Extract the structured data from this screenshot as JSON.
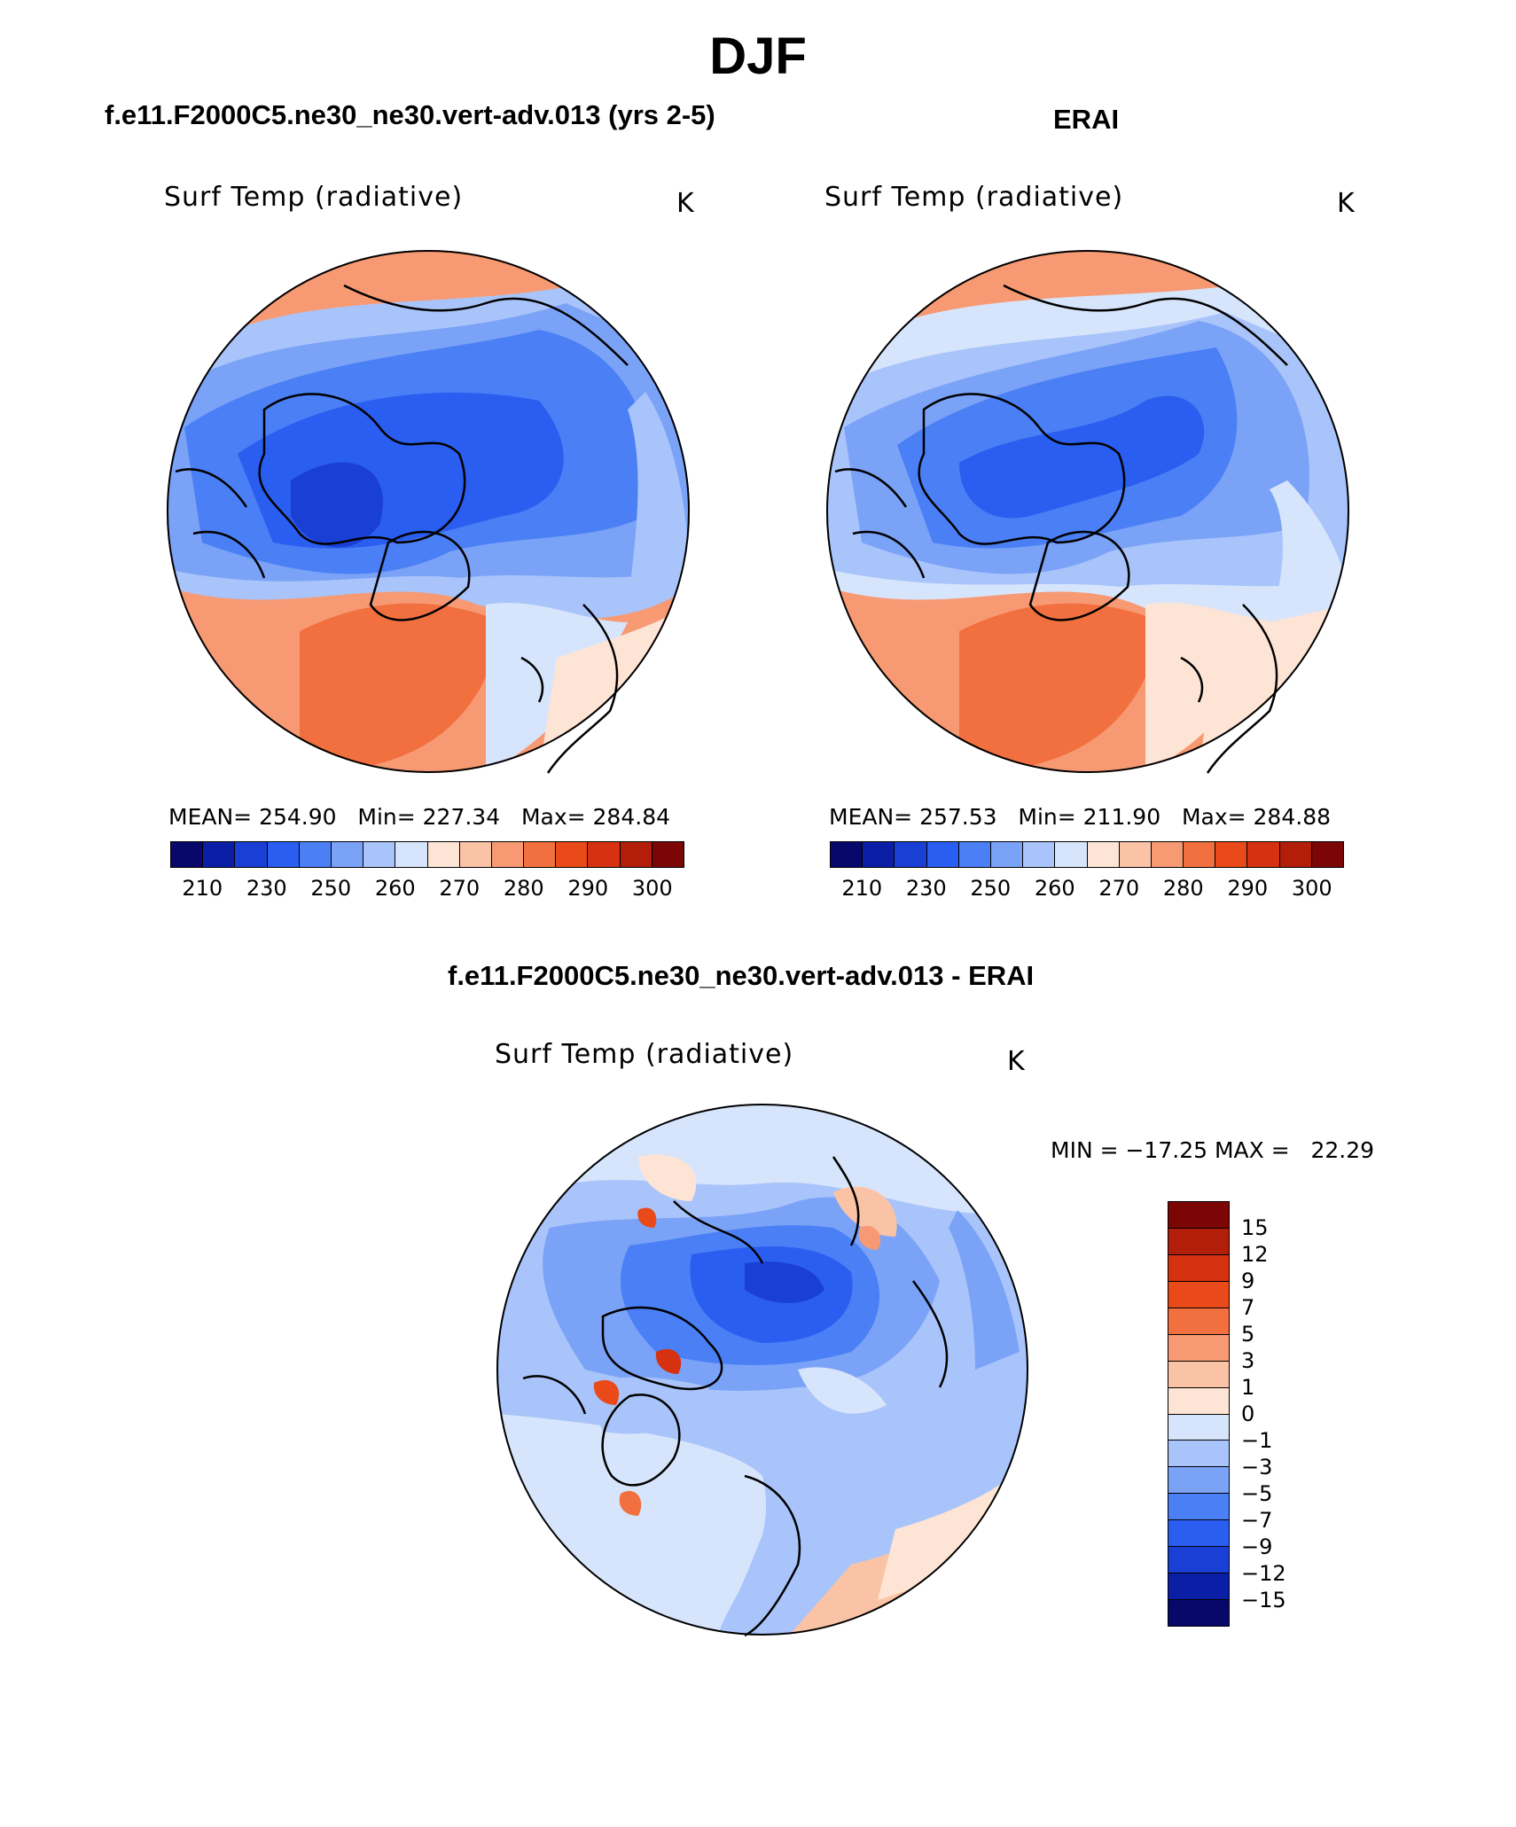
{
  "main_title": "DJF",
  "panels": [
    {
      "title": "f.e11.F2000C5.ne30_ne30.vert-adv.013 (yrs 2-5)",
      "variable": "Surf Temp (radiative)",
      "units": "K",
      "stats": "MEAN= 254.90   Min= 227.34   Max= 284.84"
    },
    {
      "title": "ERAI",
      "variable": "Surf Temp (radiative)",
      "units": "K",
      "stats": "MEAN= 257.53   Min= 211.90   Max= 284.88"
    },
    {
      "title": "f.e11.F2000C5.ne30_ne30.vert-adv.013 - ERAI",
      "variable": "Surf Temp (radiative)",
      "units": "K",
      "stats": "MIN = −17.25 MAX =   22.29"
    }
  ],
  "colorbar_abs": {
    "colors": [
      "#08086b",
      "#0a1fa6",
      "#1a3fd4",
      "#2a5ef0",
      "#4a7ff5",
      "#7aa2f7",
      "#a9c4fa",
      "#d7e5fc",
      "#fde4d4",
      "#fbc3a6",
      "#f79a74",
      "#f2703f",
      "#ea4a1a",
      "#d63110",
      "#b21e0a",
      "#7c0606"
    ],
    "ticks": [
      "210",
      "230",
      "250",
      "260",
      "270",
      "280",
      "290",
      "300"
    ]
  },
  "colorbar_diff": {
    "colors": [
      "#7c0606",
      "#b21e0a",
      "#d63110",
      "#ea4a1a",
      "#f2703f",
      "#f79a74",
      "#fbc3a6",
      "#fde4d4",
      "#d7e5fc",
      "#a9c4fa",
      "#7aa2f7",
      "#4a7ff5",
      "#2a5ef0",
      "#1a3fd4",
      "#0a1fa6",
      "#08086b"
    ],
    "ticks": [
      "15",
      "12",
      "9",
      "7",
      "5",
      "3",
      "1",
      "0",
      "−1",
      "−3",
      "−5",
      "−7",
      "−9",
      "−12",
      "−15"
    ]
  }
}
